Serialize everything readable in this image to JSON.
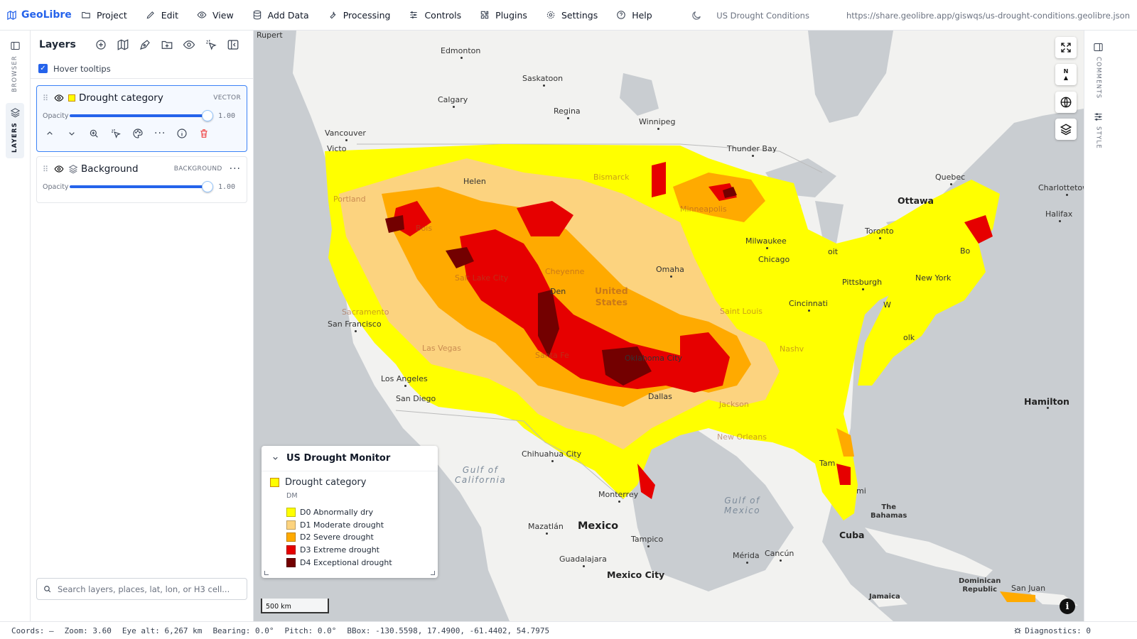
{
  "app": {
    "brand": "GeoLibre",
    "menu": [
      "Project",
      "Edit",
      "View",
      "Add Data",
      "Processing",
      "Controls",
      "Plugins",
      "Settings",
      "Help"
    ],
    "doc_title": "US Drought Conditions",
    "doc_url": "https://share.geolibre.app/giswqs/us-drought-conditions.geolibre.json"
  },
  "left_rail": {
    "browser": "BROWSER",
    "layers": "LAYERS"
  },
  "right_rail": {
    "comments": "COMMENTS",
    "style": "STYLE"
  },
  "layers_panel": {
    "title": "Layers",
    "hover_tooltips": "Hover tooltips",
    "hover_checked": true,
    "opacity_label": "Opacity",
    "layers": [
      {
        "name": "Drought category",
        "type": "VECTOR",
        "opacity": "1.00",
        "opacity_fraction": 1.0,
        "swatch": "#ffff00"
      },
      {
        "name": "Background",
        "type": "BACKGROUND",
        "opacity": "1.00",
        "opacity_fraction": 1.0
      }
    ],
    "search_placeholder": "Search layers, places, lat, lon, or H3 cell..."
  },
  "legend": {
    "title": "US Drought Monitor",
    "layer_name": "Drought category",
    "field": "DM",
    "items": [
      {
        "label": "D0 Abnormally dry",
        "color": "#ffff00"
      },
      {
        "label": "D1 Moderate drought",
        "color": "#fcd37f"
      },
      {
        "label": "D2 Severe drought",
        "color": "#ffaa00"
      },
      {
        "label": "D3 Extreme drought",
        "color": "#e60000"
      },
      {
        "label": "D4 Exceptional drought",
        "color": "#730000"
      }
    ]
  },
  "map": {
    "scale": "500 km",
    "north": "N",
    "labels": {
      "rupert": "Rupert",
      "edmonton": "Edmonton",
      "saskatoon": "Saskatoon",
      "calgary": "Calgary",
      "regina": "Regina",
      "winnipeg": "Winnipeg",
      "vancouver": "Vancouver",
      "victoria": "Victo",
      "thunder_bay": "Thunder Bay",
      "quebec": "Quebec",
      "charlottetown": "Charlottetown",
      "ottawa": "Ottawa",
      "halifax": "Halifax",
      "toronto": "Toronto",
      "milwaukee": "Milwaukee",
      "chicago": "Chicago",
      "omaha": "Omaha",
      "pittsburgh": "Pittsburgh",
      "new_york": "New York",
      "cincinnati": "Cincinnati",
      "san_francisco": "San Francisco",
      "los_angeles": "Los Angeles",
      "san_diego": "San Diego",
      "helena": "Helen",
      "portland": "Portland",
      "chihuahua": "Chihuahua City",
      "monterrey": "Monterrey",
      "mazatlan": "Mazatlán",
      "mexico": "Mexico",
      "tampico": "Tampico",
      "guadalajara": "Guadalajara",
      "mexico_city": "Mexico City",
      "merida": "Mérida",
      "cancun": "Cancún",
      "cuba": "Cuba",
      "bahamas": "The\nBahamas",
      "hamilton": "Hamilton",
      "dominican": "Dominican\nRepublic",
      "san_juan": "San Juan",
      "jamaica": "Jamaica",
      "gulf_california": "Gulf of\nCalifornia",
      "gulf_mexico": "Gulf of\nMexico",
      "bismarck": "Bismarck",
      "minneapolis": "Minneapolis",
      "cheyenne": "Cheyenne",
      "salt_lake": "Salt Lake City",
      "sacramento": "Sacramento",
      "las_vegas": "Las Vegas",
      "santa_fe": "Santa Fe",
      "oklahoma": "Oklahoma City",
      "dallas": "Dallas",
      "jackson": "Jackson",
      "new_orleans": "New Orleans",
      "saint_louis": "Saint Louis",
      "united_states": "United\nStates",
      "denver": "Den",
      "boise": "Bois",
      "nashville": "Nashv",
      "tampa": "Tam",
      "miami": "mi",
      "boston": "Bo",
      "washington": "W",
      "norfolk": "olk",
      "detroit": "oit"
    }
  },
  "status": {
    "coords": "Coords: —",
    "zoom": "Zoom: 3.60",
    "eye_alt": "Eye alt: 6,267 km",
    "bearing": "Bearing: 0.0°",
    "pitch": "Pitch: 0.0°",
    "bbox": "BBox: -130.5598, 17.4900, -61.4402, 54.7975",
    "diagnostics": "Diagnostics: 0"
  }
}
